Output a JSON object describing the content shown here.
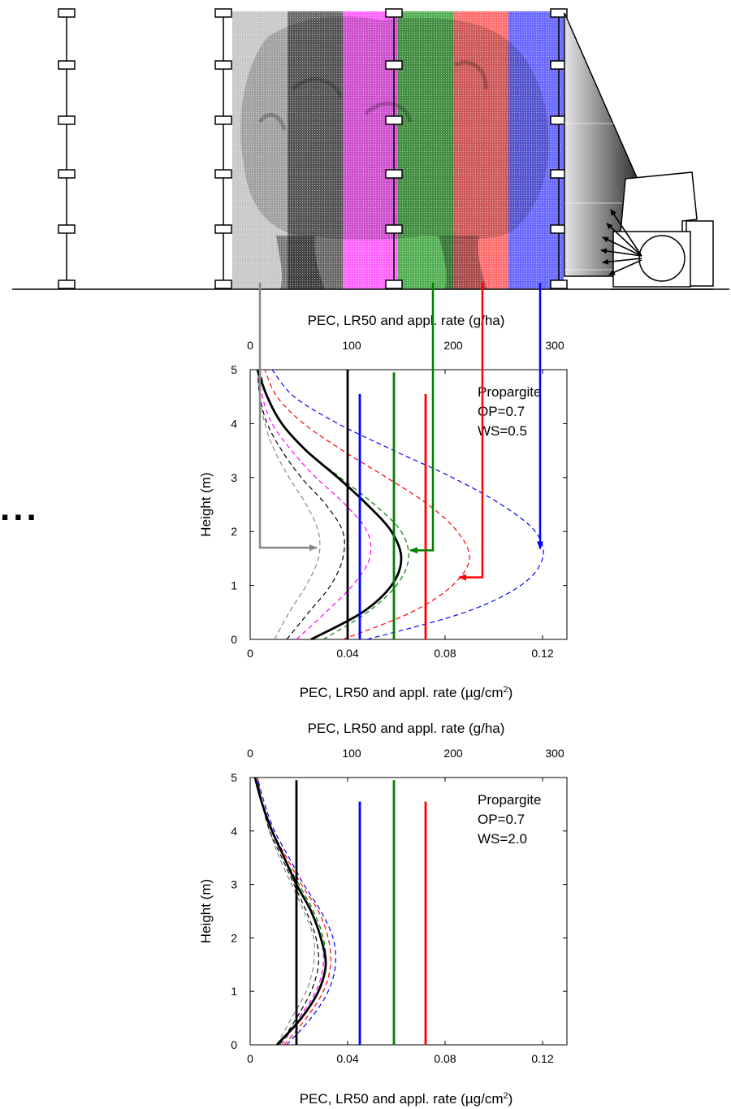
{
  "colors": {
    "gray": "#888888",
    "black": "#000000",
    "magenta": "#ff00ff",
    "green": "#008000",
    "red": "#ff0000",
    "blue": "#0000ff",
    "band_gray": "#c8c8c8",
    "band_black": "#6a6a6a",
    "band_magenta": "#ff66ff",
    "band_green": "#55b055",
    "band_red": "#ff7070",
    "band_blue": "#6a6aff"
  },
  "icons": {
    "sprayer": "air-blast-sprayer-icon",
    "tree": "tree-canopy-icon",
    "poles": "sampling-pole-icon",
    "ellipsis": "ellipsis-icon"
  },
  "ellipsis": "...",
  "chart_data": [
    {
      "type": "line",
      "ylabel": "Height (m)",
      "xlabel_bottom": "PEC, LR50 and appl. rate (µg/cm²)",
      "xlabel_bottom_prefix": "PEC, LR50 and appl. rate (",
      "xlabel_bottom_unit": "µg/cm",
      "xlabel_bottom_sup": "2",
      "xlabel_bottom_suffix": ")",
      "xlabel_top": "PEC, LR50 and appl. rate (g/ha)",
      "xlim": [
        0,
        0.13
      ],
      "ylim": [
        0,
        5
      ],
      "xticks": [
        0,
        0.04,
        0.08,
        0.12
      ],
      "xtick_labels": [
        "0",
        "0.04",
        "0.08",
        "0.12"
      ],
      "yticks": [
        0,
        1,
        2,
        3,
        4,
        5
      ],
      "ytick_labels": [
        "0",
        "1",
        "2",
        "3",
        "4",
        "5"
      ],
      "top_ticks_gha": [
        0,
        100,
        200,
        300
      ],
      "top_tick_labels": [
        "0",
        "100",
        "200",
        "300"
      ],
      "annotation": [
        "Propargite",
        "OP=0.7",
        "WS=0.5"
      ],
      "vertical_lines": [
        {
          "color": "black",
          "x": 0.04,
          "y": [
            0,
            5
          ]
        },
        {
          "color": "blue",
          "x": 0.045,
          "y": [
            0,
            4.55
          ]
        },
        {
          "color": "green",
          "x": 0.059,
          "y": [
            0,
            4.95
          ]
        },
        {
          "color": "red",
          "x": 0.072,
          "y": [
            0,
            4.55
          ]
        }
      ],
      "series": [
        {
          "color": "gray",
          "style": "dashed",
          "height": [
            0,
            0.5,
            1,
            1.5,
            2,
            2.5,
            3,
            3.5,
            4,
            4.5,
            5
          ],
          "value": [
            0.01,
            0.016,
            0.023,
            0.028,
            0.028,
            0.023,
            0.016,
            0.01,
            0.006,
            0.004,
            0.003
          ]
        },
        {
          "color": "black",
          "style": "dashed",
          "height": [
            0,
            0.5,
            1,
            1.5,
            2,
            2.5,
            3,
            3.5,
            4,
            4.5,
            5
          ],
          "value": [
            0.015,
            0.024,
            0.033,
            0.038,
            0.038,
            0.031,
            0.021,
            0.013,
            0.007,
            0.004,
            0.003
          ]
        },
        {
          "color": "magenta",
          "style": "dashed",
          "height": [
            0,
            0.5,
            1,
            1.5,
            2,
            2.5,
            3,
            3.5,
            4,
            4.5,
            5
          ],
          "value": [
            0.019,
            0.031,
            0.042,
            0.049,
            0.048,
            0.039,
            0.027,
            0.017,
            0.009,
            0.005,
            0.003
          ]
        },
        {
          "color": "green",
          "style": "dashed",
          "height": [
            0,
            0.5,
            1,
            1.5,
            2,
            2.5,
            3,
            3.5,
            4,
            4.5,
            5
          ],
          "value": [
            0.03,
            0.048,
            0.06,
            0.065,
            0.062,
            0.051,
            0.037,
            0.023,
            0.013,
            0.007,
            0.004
          ]
        },
        {
          "color": "red",
          "style": "dashed",
          "height": [
            0,
            0.5,
            1,
            1.5,
            2,
            2.5,
            3,
            3.5,
            4,
            4.5,
            5
          ],
          "value": [
            0.038,
            0.066,
            0.083,
            0.09,
            0.085,
            0.073,
            0.056,
            0.038,
            0.022,
            0.011,
            0.006
          ]
        },
        {
          "color": "blue",
          "style": "dashed",
          "height": [
            0,
            0.5,
            1,
            1.5,
            2,
            2.5,
            3,
            3.5,
            4,
            4.5,
            5
          ],
          "value": [
            0.048,
            0.088,
            0.111,
            0.12,
            0.117,
            0.103,
            0.083,
            0.059,
            0.036,
            0.018,
            0.009
          ]
        },
        {
          "color": "black",
          "style": "solid-thick",
          "height": [
            0,
            0.5,
            1,
            1.5,
            2,
            2.5,
            3,
            3.5,
            4,
            4.5,
            5
          ],
          "value": [
            0.025,
            0.046,
            0.058,
            0.062,
            0.058,
            0.048,
            0.036,
            0.023,
            0.013,
            0.007,
            0.003
          ]
        }
      ],
      "arrows": [
        {
          "color": "gray",
          "to": {
            "x": 0.028,
            "h": 1.7
          }
        },
        {
          "color": "green",
          "to": {
            "x": 0.065,
            "h": 1.65
          }
        },
        {
          "color": "red",
          "to": {
            "x": 0.085,
            "h": 1.15
          }
        },
        {
          "color": "blue",
          "to": {
            "x": 0.119,
            "h": 1.65
          }
        }
      ]
    },
    {
      "type": "line",
      "ylabel": "Height (m)",
      "xlabel_bottom": "PEC, LR50 and appl. rate (µg/cm²)",
      "xlabel_bottom_prefix": "PEC, LR50 and appl. rate (",
      "xlabel_bottom_unit": "µg/cm",
      "xlabel_bottom_sup": "2",
      "xlabel_bottom_suffix": ")",
      "xlabel_top": "PEC, LR50 and appl. rate (g/ha)",
      "xlim": [
        0,
        0.13
      ],
      "ylim": [
        0,
        5
      ],
      "xticks": [
        0,
        0.04,
        0.08,
        0.12
      ],
      "xtick_labels": [
        "0",
        "0.04",
        "0.08",
        "0.12"
      ],
      "yticks": [
        0,
        1,
        2,
        3,
        4,
        5
      ],
      "ytick_labels": [
        "0",
        "1",
        "2",
        "3",
        "4",
        "5"
      ],
      "top_ticks_gha": [
        0,
        100,
        200,
        300
      ],
      "top_tick_labels": [
        "0",
        "100",
        "200",
        "300"
      ],
      "annotation": [
        "Propargite",
        "OP=0.7",
        "WS=2.0"
      ],
      "vertical_lines": [
        {
          "color": "black",
          "x": 0.019,
          "y": [
            0,
            4.95
          ]
        },
        {
          "color": "blue",
          "x": 0.045,
          "y": [
            0,
            4.55
          ]
        },
        {
          "color": "green",
          "x": 0.059,
          "y": [
            0,
            4.95
          ]
        },
        {
          "color": "red",
          "x": 0.072,
          "y": [
            0,
            4.55
          ]
        }
      ],
      "series": [
        {
          "color": "gray",
          "style": "dashed",
          "height": [
            0,
            0.5,
            1,
            1.5,
            2,
            2.5,
            3,
            3.5,
            4,
            4.5,
            5
          ],
          "value": [
            0.011,
            0.017,
            0.023,
            0.026,
            0.026,
            0.022,
            0.017,
            0.012,
            0.008,
            0.005,
            0.003
          ]
        },
        {
          "color": "black",
          "style": "dashed",
          "height": [
            0,
            0.5,
            1,
            1.5,
            2,
            2.5,
            3,
            3.5,
            4,
            4.5,
            5
          ],
          "value": [
            0.012,
            0.019,
            0.025,
            0.028,
            0.027,
            0.023,
            0.018,
            0.013,
            0.008,
            0.005,
            0.003
          ]
        },
        {
          "color": "magenta",
          "style": "dashed",
          "height": [
            0,
            0.5,
            1,
            1.5,
            2,
            2.5,
            3,
            3.5,
            4,
            4.5,
            5
          ],
          "value": [
            0.013,
            0.02,
            0.027,
            0.03,
            0.029,
            0.025,
            0.019,
            0.014,
            0.009,
            0.005,
            0.003
          ]
        },
        {
          "color": "green",
          "style": "dashed",
          "height": [
            0,
            0.5,
            1,
            1.5,
            2,
            2.5,
            3,
            3.5,
            4,
            4.5,
            5
          ],
          "value": [
            0.012,
            0.021,
            0.028,
            0.031,
            0.03,
            0.026,
            0.02,
            0.014,
            0.009,
            0.005,
            0.003
          ]
        },
        {
          "color": "red",
          "style": "dashed",
          "height": [
            0,
            0.5,
            1,
            1.5,
            2,
            2.5,
            3,
            3.5,
            4,
            4.5,
            5
          ],
          "value": [
            0.014,
            0.023,
            0.03,
            0.033,
            0.032,
            0.028,
            0.021,
            0.015,
            0.009,
            0.005,
            0.003
          ]
        },
        {
          "color": "blue",
          "style": "dashed",
          "height": [
            0,
            0.5,
            1,
            1.5,
            2,
            2.5,
            3,
            3.5,
            4,
            4.5,
            5
          ],
          "value": [
            0.015,
            0.025,
            0.032,
            0.035,
            0.034,
            0.029,
            0.022,
            0.016,
            0.01,
            0.006,
            0.003
          ]
        },
        {
          "color": "black",
          "style": "solid-thick",
          "height": [
            0,
            0.5,
            1,
            1.5,
            2,
            2.5,
            3,
            3.5,
            4,
            4.5,
            5
          ],
          "value": [
            0.011,
            0.021,
            0.028,
            0.031,
            0.029,
            0.025,
            0.019,
            0.014,
            0.009,
            0.005,
            0.002
          ]
        }
      ],
      "arrows": []
    }
  ]
}
